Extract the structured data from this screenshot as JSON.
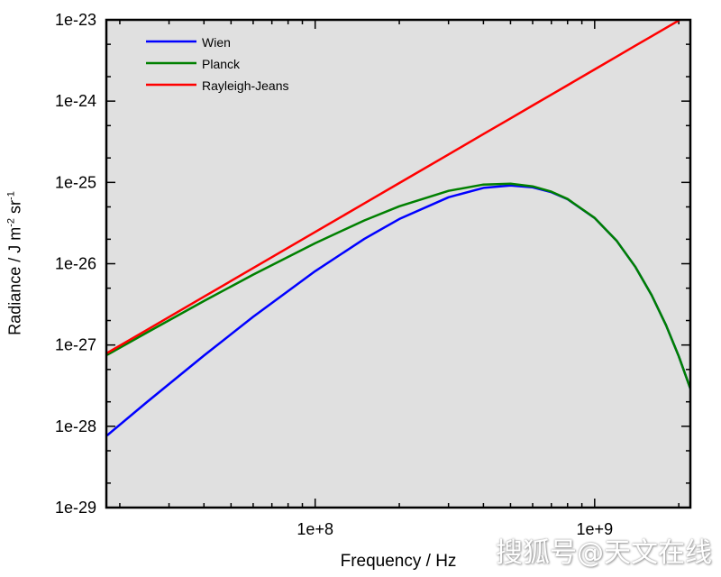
{
  "chart_data": {
    "type": "line",
    "title": "",
    "xlabel": "Frequency / Hz",
    "ylabel_parts": [
      "Radiance / J m",
      "-2",
      " sr",
      "-1"
    ],
    "xscale": "log",
    "yscale": "log",
    "xlim": [
      17900000.0,
      2200000000.0
    ],
    "ylim": [
      1e-29,
      1e-23
    ],
    "xticks": [
      {
        "v": 100000000.0,
        "label": "1e+8"
      },
      {
        "v": 1000000000.0,
        "label": "1e+9"
      }
    ],
    "yticks": [
      {
        "v": 1e-23,
        "label": "1e-23"
      },
      {
        "v": 1e-24,
        "label": "1e-24"
      },
      {
        "v": 1e-25,
        "label": "1e-25"
      },
      {
        "v": 1e-26,
        "label": "1e-26"
      },
      {
        "v": 1e-27,
        "label": "1e-27"
      },
      {
        "v": 1e-28,
        "label": "1e-28"
      },
      {
        "v": 1e-29,
        "label": "1e-29"
      }
    ],
    "legend_position": "top-left",
    "grid": false,
    "x": [
      18000000.0,
      25000000.0,
      40000000.0,
      60000000.0,
      100000000.0,
      150000000.0,
      200000000.0,
      300000000.0,
      400000000.0,
      500000000.0,
      600000000.0,
      700000000.0,
      800000000.0,
      1000000000.0,
      1200000000.0,
      1400000000.0,
      1600000000.0,
      1800000000.0,
      2000000000.0,
      2200000000.0
    ],
    "series": [
      {
        "name": "Wien",
        "color": "#0000ff",
        "values": [
          7.72e-29,
          1.982e-28,
          7.42e-28,
          2.221e-27,
          8.087e-27,
          2.022e-26,
          3.551e-26,
          6.575e-26,
          8.557e-26,
          9.171e-26,
          8.697e-26,
          7.58e-26,
          6.209e-26,
          3.653e-26,
          1.901e-26,
          9.094e-27,
          4.088e-27,
          1.753e-27,
          7.243e-28,
          2.904e-28
        ]
      },
      {
        "name": "Planck",
        "color": "#008000",
        "values": [
          7.54e-28,
          1.423e-27,
          3.478e-27,
          7.346e-27,
          1.792e-26,
          3.407e-26,
          5.081e-26,
          7.879e-26,
          9.411e-26,
          9.651e-26,
          8.942e-26,
          7.695e-26,
          6.261e-26,
          3.662e-26,
          1.903e-26,
          9.096e-27,
          4.088e-27,
          1.753e-27,
          7.243e-28,
          2.904e-28
        ]
      },
      {
        "name": "Rayleigh-Jeans",
        "color": "#ff0000",
        "values": [
          7.96e-28,
          1.535e-27,
          3.93e-27,
          8.842e-27,
          2.456e-26,
          5.526e-26,
          9.824e-26,
          2.21e-25,
          3.93e-25,
          6.14e-25,
          8.842e-25,
          1.2034e-24,
          1.5718e-24,
          2.456e-24,
          3.537e-24,
          4.814e-24,
          6.287e-24,
          7.957e-24,
          9.824e-24,
          1.1887e-23
        ]
      }
    ]
  },
  "watermark": "搜狐号@天文在线"
}
